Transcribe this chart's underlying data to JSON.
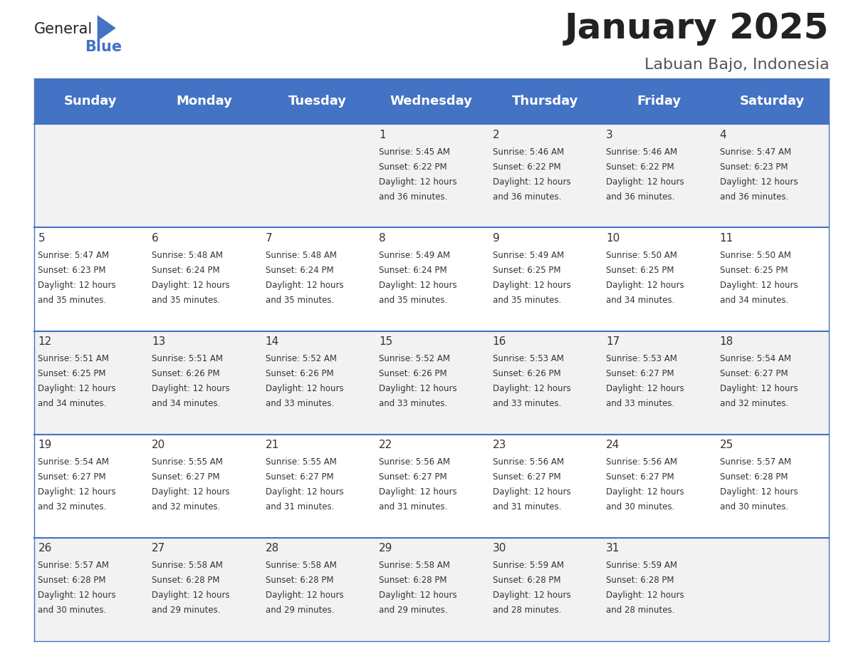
{
  "title": "January 2025",
  "subtitle": "Labuan Bajo, Indonesia",
  "days_of_week": [
    "Sunday",
    "Monday",
    "Tuesday",
    "Wednesday",
    "Thursday",
    "Friday",
    "Saturday"
  ],
  "header_bg": "#4472C4",
  "header_text": "#FFFFFF",
  "row_bg_odd": "#F2F2F2",
  "row_bg_even": "#FFFFFF",
  "cell_text_color": "#333333",
  "day_number_color": "#333333",
  "separator_color": "#4472C4",
  "calendar_data": [
    [
      {
        "day": "",
        "sunrise": "",
        "sunset": "",
        "daylight": ""
      },
      {
        "day": "",
        "sunrise": "",
        "sunset": "",
        "daylight": ""
      },
      {
        "day": "",
        "sunrise": "",
        "sunset": "",
        "daylight": ""
      },
      {
        "day": "1",
        "sunrise": "5:45 AM",
        "sunset": "6:22 PM",
        "daylight": "12 hours and 36 minutes."
      },
      {
        "day": "2",
        "sunrise": "5:46 AM",
        "sunset": "6:22 PM",
        "daylight": "12 hours and 36 minutes."
      },
      {
        "day": "3",
        "sunrise": "5:46 AM",
        "sunset": "6:22 PM",
        "daylight": "12 hours and 36 minutes."
      },
      {
        "day": "4",
        "sunrise": "5:47 AM",
        "sunset": "6:23 PM",
        "daylight": "12 hours and 36 minutes."
      }
    ],
    [
      {
        "day": "5",
        "sunrise": "5:47 AM",
        "sunset": "6:23 PM",
        "daylight": "12 hours and 35 minutes."
      },
      {
        "day": "6",
        "sunrise": "5:48 AM",
        "sunset": "6:24 PM",
        "daylight": "12 hours and 35 minutes."
      },
      {
        "day": "7",
        "sunrise": "5:48 AM",
        "sunset": "6:24 PM",
        "daylight": "12 hours and 35 minutes."
      },
      {
        "day": "8",
        "sunrise": "5:49 AM",
        "sunset": "6:24 PM",
        "daylight": "12 hours and 35 minutes."
      },
      {
        "day": "9",
        "sunrise": "5:49 AM",
        "sunset": "6:25 PM",
        "daylight": "12 hours and 35 minutes."
      },
      {
        "day": "10",
        "sunrise": "5:50 AM",
        "sunset": "6:25 PM",
        "daylight": "12 hours and 34 minutes."
      },
      {
        "day": "11",
        "sunrise": "5:50 AM",
        "sunset": "6:25 PM",
        "daylight": "12 hours and 34 minutes."
      }
    ],
    [
      {
        "day": "12",
        "sunrise": "5:51 AM",
        "sunset": "6:25 PM",
        "daylight": "12 hours and 34 minutes."
      },
      {
        "day": "13",
        "sunrise": "5:51 AM",
        "sunset": "6:26 PM",
        "daylight": "12 hours and 34 minutes."
      },
      {
        "day": "14",
        "sunrise": "5:52 AM",
        "sunset": "6:26 PM",
        "daylight": "12 hours and 33 minutes."
      },
      {
        "day": "15",
        "sunrise": "5:52 AM",
        "sunset": "6:26 PM",
        "daylight": "12 hours and 33 minutes."
      },
      {
        "day": "16",
        "sunrise": "5:53 AM",
        "sunset": "6:26 PM",
        "daylight": "12 hours and 33 minutes."
      },
      {
        "day": "17",
        "sunrise": "5:53 AM",
        "sunset": "6:27 PM",
        "daylight": "12 hours and 33 minutes."
      },
      {
        "day": "18",
        "sunrise": "5:54 AM",
        "sunset": "6:27 PM",
        "daylight": "12 hours and 32 minutes."
      }
    ],
    [
      {
        "day": "19",
        "sunrise": "5:54 AM",
        "sunset": "6:27 PM",
        "daylight": "12 hours and 32 minutes."
      },
      {
        "day": "20",
        "sunrise": "5:55 AM",
        "sunset": "6:27 PM",
        "daylight": "12 hours and 32 minutes."
      },
      {
        "day": "21",
        "sunrise": "5:55 AM",
        "sunset": "6:27 PM",
        "daylight": "12 hours and 31 minutes."
      },
      {
        "day": "22",
        "sunrise": "5:56 AM",
        "sunset": "6:27 PM",
        "daylight": "12 hours and 31 minutes."
      },
      {
        "day": "23",
        "sunrise": "5:56 AM",
        "sunset": "6:27 PM",
        "daylight": "12 hours and 31 minutes."
      },
      {
        "day": "24",
        "sunrise": "5:56 AM",
        "sunset": "6:27 PM",
        "daylight": "12 hours and 30 minutes."
      },
      {
        "day": "25",
        "sunrise": "5:57 AM",
        "sunset": "6:28 PM",
        "daylight": "12 hours and 30 minutes."
      }
    ],
    [
      {
        "day": "26",
        "sunrise": "5:57 AM",
        "sunset": "6:28 PM",
        "daylight": "12 hours and 30 minutes."
      },
      {
        "day": "27",
        "sunrise": "5:58 AM",
        "sunset": "6:28 PM",
        "daylight": "12 hours and 29 minutes."
      },
      {
        "day": "28",
        "sunrise": "5:58 AM",
        "sunset": "6:28 PM",
        "daylight": "12 hours and 29 minutes."
      },
      {
        "day": "29",
        "sunrise": "5:58 AM",
        "sunset": "6:28 PM",
        "daylight": "12 hours and 29 minutes."
      },
      {
        "day": "30",
        "sunrise": "5:59 AM",
        "sunset": "6:28 PM",
        "daylight": "12 hours and 28 minutes."
      },
      {
        "day": "31",
        "sunrise": "5:59 AM",
        "sunset": "6:28 PM",
        "daylight": "12 hours and 28 minutes."
      },
      {
        "day": "",
        "sunrise": "",
        "sunset": "",
        "daylight": ""
      }
    ]
  ],
  "logo_text_general": "General",
  "logo_text_blue": "Blue",
  "logo_color_general": "#222222",
  "logo_color_blue": "#4472C4",
  "title_color": "#222222",
  "subtitle_color": "#555555"
}
